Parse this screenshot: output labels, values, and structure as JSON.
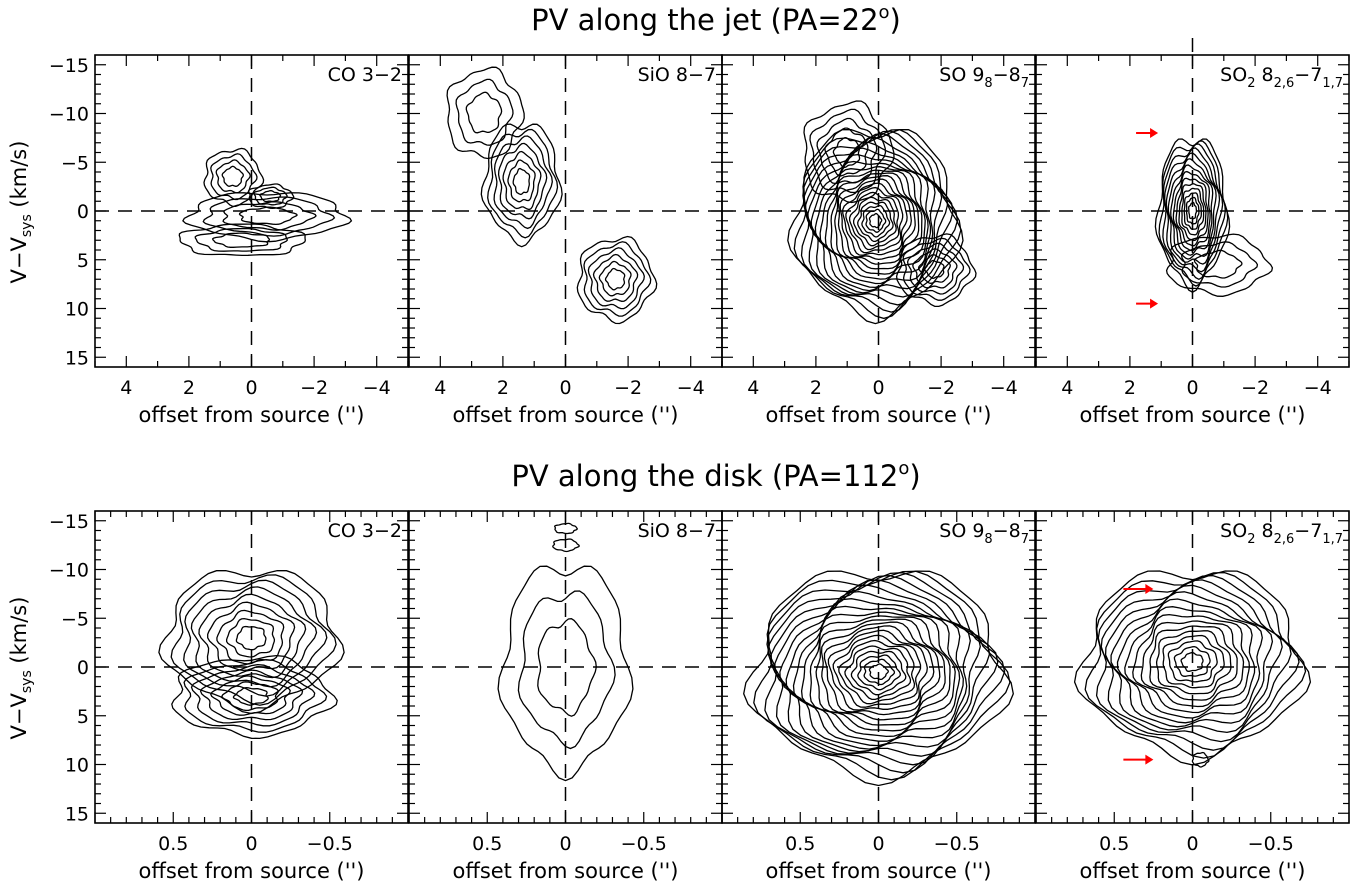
{
  "figure": {
    "rows": [
      {
        "title": "PV along the jet (PA=22°)",
        "title_main": "PV along the jet (PA=22",
        "title_sup": "o",
        "title_end": ")"
      },
      {
        "title": "PV along the disk (PA=112°)",
        "title_main": "PV along the disk (PA=112",
        "title_sup": "o",
        "title_end": ")"
      }
    ],
    "ylabel": "V−V_sys (km/s)",
    "xlabel": "offset from source ('')",
    "panel_labels": [
      "CO 3−2",
      "SiO 8−7",
      "SO 9_8−8_7",
      "SO_2 8_{2,6}−7_{1,7}"
    ]
  },
  "chart_data": [
    {
      "type": "contour",
      "row": "jet",
      "x_ticks": [
        4,
        2,
        0,
        -2,
        -4
      ],
      "xlim": [
        5,
        -5
      ],
      "y_ticks": [
        -15,
        -10,
        -5,
        0,
        5,
        10,
        15
      ],
      "ylim": [
        -16,
        16
      ],
      "panels": [
        {
          "label": "CO 3−2",
          "blobs": [
            {
              "x": -0.5,
              "y": 0.5,
              "rx": 2.5,
              "ry": 2.4,
              "levels": 4
            },
            {
              "x": 0.6,
              "y": -3.5,
              "rx": 0.9,
              "ry": 2.8,
              "levels": 4
            },
            {
              "x": -0.6,
              "y": -1.5,
              "rx": 0.7,
              "ry": 1.2,
              "levels": 3
            },
            {
              "x": 0.3,
              "y": 3.0,
              "rx": 2.0,
              "ry": 1.6,
              "levels": 3
            }
          ]
        },
        {
          "label": "SiO 8−7",
          "blobs": [
            {
              "x": 1.4,
              "y": -3.0,
              "rx": 1.2,
              "ry": 6.0,
              "levels": 7
            },
            {
              "x": -1.6,
              "y": 7.0,
              "rx": 1.2,
              "ry": 4.2,
              "levels": 6
            },
            {
              "x": 2.6,
              "y": -10.0,
              "rx": 1.2,
              "ry": 4.5,
              "levels": 3
            }
          ]
        },
        {
          "label": "SO 9_8−8_7",
          "blobs": [
            {
              "x": 0.1,
              "y": 1.0,
              "rx": 2.6,
              "ry": 9.5,
              "levels": 22
            },
            {
              "x": -1.8,
              "y": 6.0,
              "rx": 1.2,
              "ry": 3.5,
              "levels": 6
            },
            {
              "x": 1.0,
              "y": -6.0,
              "rx": 1.4,
              "ry": 5.0,
              "levels": 5
            }
          ]
        },
        {
          "label": "SO_2 8_{2,6}−7_{1,7}",
          "blobs": [
            {
              "x": 0.0,
              "y": 0.0,
              "rx": 1.1,
              "ry": 7.5,
              "levels": 14
            },
            {
              "x": -0.8,
              "y": 5.5,
              "rx": 1.6,
              "ry": 3.0,
              "levels": 3
            }
          ]
        }
      ],
      "arrows": [
        {
          "panel": 3,
          "x": 1.1,
          "y": -8.0
        },
        {
          "panel": 3,
          "x": 1.1,
          "y": 9.5
        }
      ]
    },
    {
      "type": "contour",
      "row": "disk",
      "x_ticks": [
        0.5,
        0,
        -0.5
      ],
      "xlim": [
        1.0,
        -1.0
      ],
      "y_ticks": [
        -15,
        -10,
        -5,
        0,
        5,
        10,
        15
      ],
      "ylim": [
        -16,
        16
      ],
      "panels": [
        {
          "label": "CO 3−2",
          "blobs": [
            {
              "x": 0.0,
              "y": -3.0,
              "rx": 0.55,
              "ry": 7.0,
              "levels": 9
            },
            {
              "x": 0.0,
              "y": 3.0,
              "rx": 0.5,
              "ry": 4.0,
              "levels": 7
            }
          ]
        },
        {
          "label": "SiO 8−7",
          "blobs": [
            {
              "x": 0.0,
              "y": 0.0,
              "rx": 0.4,
              "ry": 10.5,
              "levels": 3
            },
            {
              "x": 0.0,
              "y": -12.5,
              "rx": 0.08,
              "ry": 0.6,
              "levels": 1
            },
            {
              "x": 0.0,
              "y": -14.2,
              "rx": 0.07,
              "ry": 0.5,
              "levels": 1
            }
          ]
        },
        {
          "label": "SO 9_8−8_7",
          "blobs": [
            {
              "x": 0.0,
              "y": 0.5,
              "rx": 0.8,
              "ry": 10.5,
              "levels": 22
            }
          ]
        },
        {
          "label": "SO_2 8_{2,6}−7_{1,7}",
          "blobs": [
            {
              "x": 0.0,
              "y": -0.5,
              "rx": 0.7,
              "ry": 9.5,
              "levels": 16
            },
            {
              "x": -0.05,
              "y": 9.5,
              "rx": 0.05,
              "ry": 0.7,
              "levels": 1
            }
          ]
        }
      ],
      "arrows": [
        {
          "panel": 3,
          "x": 0.25,
          "y": -8.0
        },
        {
          "panel": 3,
          "x": 0.25,
          "y": 9.5
        }
      ]
    }
  ],
  "colors": {
    "axes": "#000000",
    "arrow": "#ff0000"
  }
}
